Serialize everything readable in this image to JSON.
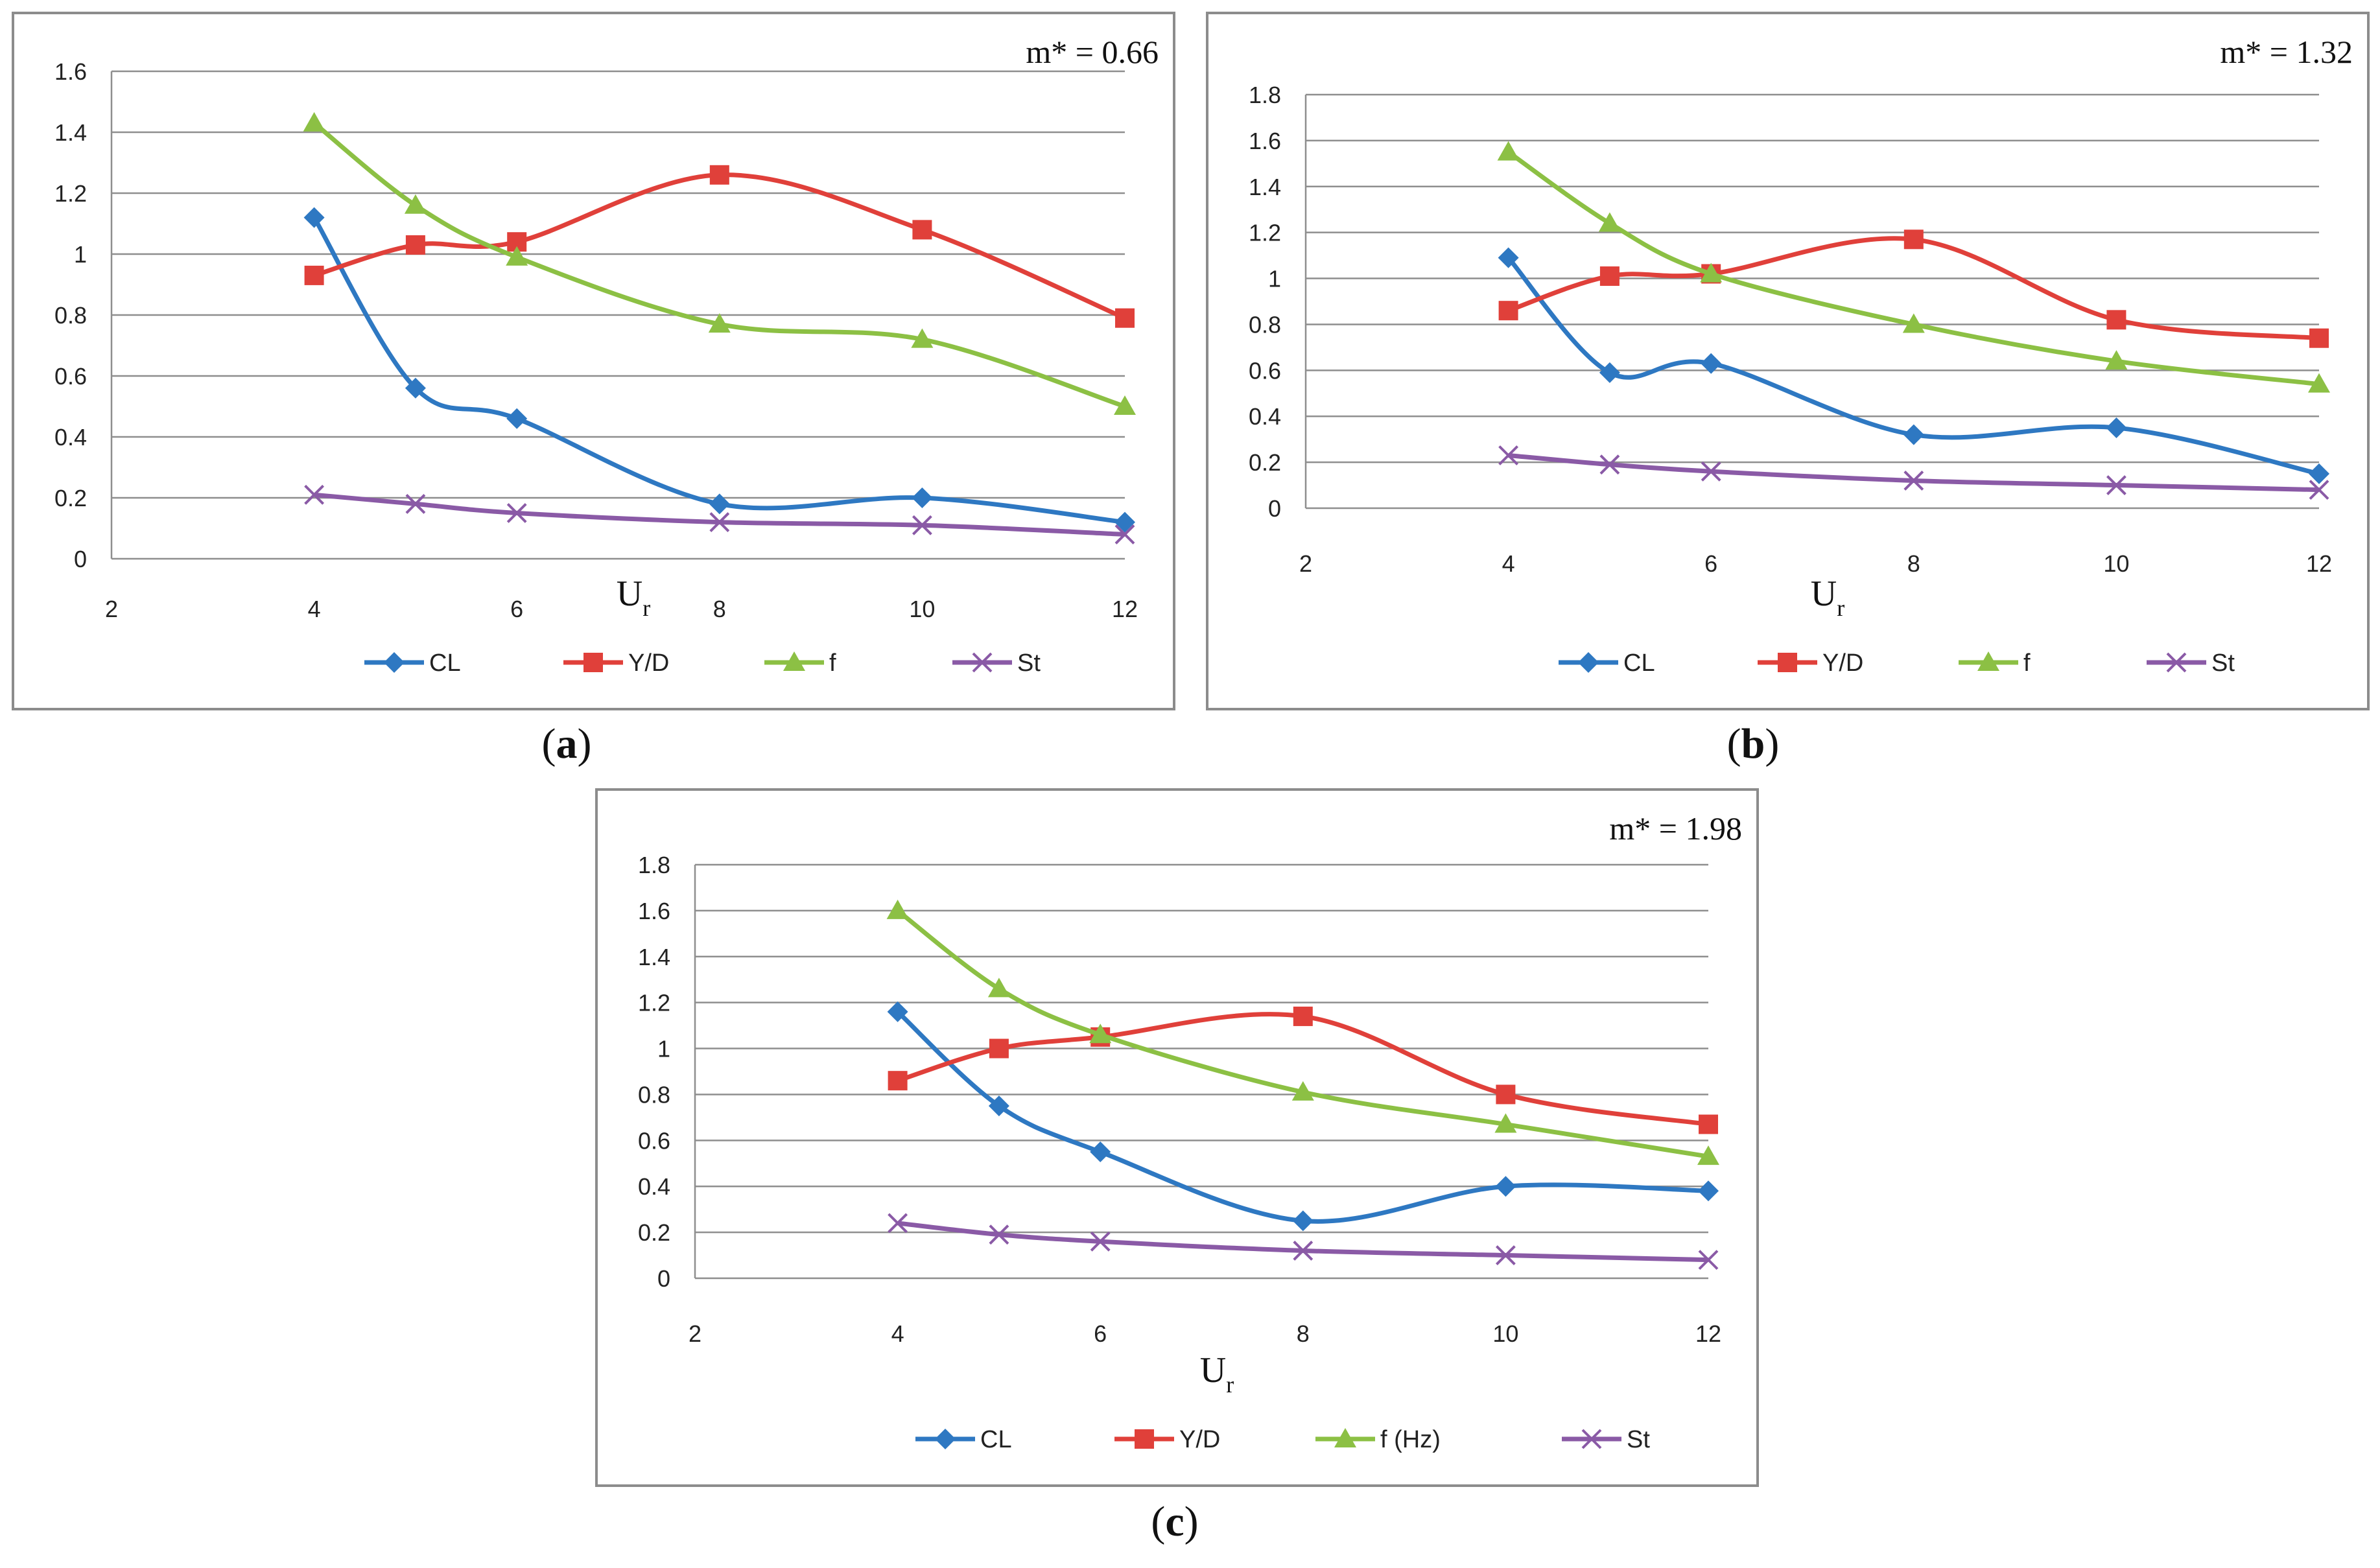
{
  "chart_data": [
    {
      "type": "line",
      "panel_label": "a",
      "title": "m* = 0.66",
      "xlabel": "U",
      "xlabel_sub": "r",
      "ylabel": "",
      "xlim": [
        2,
        12
      ],
      "ylim": [
        0,
        1.6
      ],
      "xticks": [
        "2",
        "4",
        "6",
        "8",
        "10",
        "12"
      ],
      "yticks": [
        "0",
        "0.2",
        "0.4",
        "0.6",
        "0.8",
        "1",
        "1.2",
        "1.4",
        "1.6"
      ],
      "x": [
        4,
        5,
        6,
        8,
        10,
        12
      ],
      "grid": true,
      "legend_position": "bottom",
      "series": [
        {
          "name": "CL",
          "color": "#2e78c2",
          "marker": "diamond",
          "values": [
            1.12,
            0.56,
            0.46,
            0.18,
            0.2,
            0.12
          ]
        },
        {
          "name": "Y/D",
          "color": "#e0403a",
          "marker": "square",
          "values": [
            0.93,
            1.03,
            1.04,
            1.26,
            1.08,
            0.79
          ]
        },
        {
          "name": "f",
          "color": "#8cc044",
          "marker": "triangle",
          "values": [
            1.43,
            1.16,
            0.99,
            0.77,
            0.72,
            0.5
          ]
        },
        {
          "name": "St",
          "color": "#8a5aa6",
          "marker": "x",
          "values": [
            0.21,
            0.18,
            0.15,
            0.12,
            0.11,
            0.08
          ]
        }
      ]
    },
    {
      "type": "line",
      "panel_label": "b",
      "title": "m* = 1.32",
      "xlabel": "U",
      "xlabel_sub": "r",
      "ylabel": "",
      "xlim": [
        2,
        12
      ],
      "ylim": [
        0,
        1.8
      ],
      "xticks": [
        "2",
        "4",
        "6",
        "8",
        "10",
        "12"
      ],
      "yticks": [
        "0",
        "0.2",
        "0.4",
        "0.6",
        "0.8",
        "1",
        "1.2",
        "1.4",
        "1.6",
        "1.8"
      ],
      "x": [
        4,
        5,
        6,
        8,
        10,
        12
      ],
      "grid": true,
      "legend_position": "bottom",
      "series": [
        {
          "name": "CL",
          "color": "#2e78c2",
          "marker": "diamond",
          "values": [
            1.09,
            0.59,
            0.63,
            0.32,
            0.35,
            0.15
          ]
        },
        {
          "name": "Y/D",
          "color": "#e0403a",
          "marker": "square",
          "values": [
            0.86,
            1.01,
            1.02,
            1.17,
            0.82,
            0.74
          ]
        },
        {
          "name": "f",
          "color": "#8cc044",
          "marker": "triangle",
          "values": [
            1.55,
            1.24,
            1.02,
            0.8,
            0.64,
            0.54
          ]
        },
        {
          "name": "St",
          "color": "#8a5aa6",
          "marker": "x",
          "values": [
            0.23,
            0.19,
            0.16,
            0.12,
            0.1,
            0.08
          ]
        }
      ]
    },
    {
      "type": "line",
      "panel_label": "c",
      "title": "m* = 1.98",
      "xlabel": "U",
      "xlabel_sub": "r",
      "ylabel": "",
      "xlim": [
        2,
        12
      ],
      "ylim": [
        0,
        1.8
      ],
      "xticks": [
        "2",
        "4",
        "6",
        "8",
        "10",
        "12"
      ],
      "yticks": [
        "0",
        "0.2",
        "0.4",
        "0.6",
        "0.8",
        "1",
        "1.2",
        "1.4",
        "1.6",
        "1.8"
      ],
      "x": [
        4,
        5,
        6,
        8,
        10,
        12
      ],
      "grid": true,
      "legend_position": "bottom",
      "series": [
        {
          "name": "CL",
          "color": "#2e78c2",
          "marker": "diamond",
          "values": [
            1.16,
            0.75,
            0.55,
            0.25,
            0.4,
            0.38
          ]
        },
        {
          "name": "Y/D",
          "color": "#e0403a",
          "marker": "square",
          "values": [
            0.86,
            1.0,
            1.05,
            1.14,
            0.8,
            0.67
          ]
        },
        {
          "name": "f (Hz)",
          "color": "#8cc044",
          "marker": "triangle",
          "values": [
            1.6,
            1.26,
            1.06,
            0.81,
            0.67,
            0.53
          ]
        },
        {
          "name": "St",
          "color": "#8a5aa6",
          "marker": "x",
          "values": [
            0.24,
            0.19,
            0.16,
            0.12,
            0.1,
            0.08
          ]
        }
      ]
    }
  ],
  "captions": {
    "a": {
      "open": "(",
      "letter": "a",
      "close": ")"
    },
    "b": {
      "open": "(",
      "letter": "b",
      "close": ")"
    },
    "c": {
      "open": "(",
      "letter": "c",
      "close": ")"
    }
  }
}
